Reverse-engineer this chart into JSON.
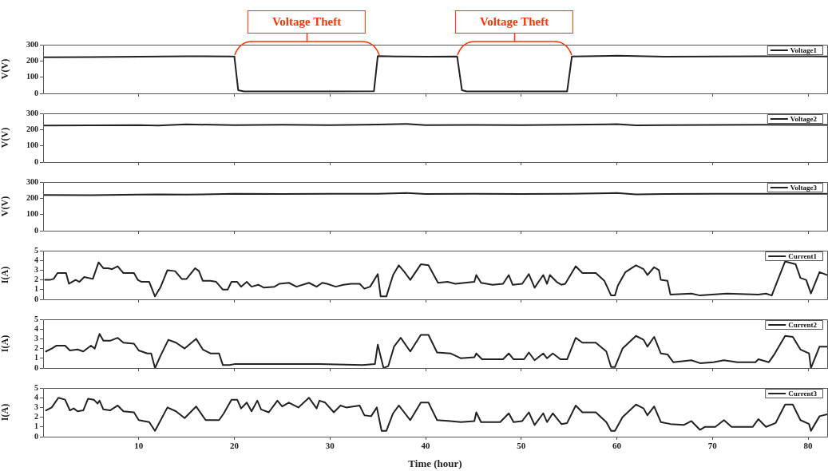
{
  "chart_data": [
    {
      "type": "line",
      "ylabel": "V(V)",
      "xlim": [
        0,
        82
      ],
      "xticks": [
        10,
        20,
        30,
        40,
        50,
        60,
        70,
        80
      ],
      "ylim": [
        0,
        300
      ],
      "yticks": [
        0,
        100,
        200,
        300
      ],
      "tick_labels": "y",
      "legend": "top right",
      "marker": "none",
      "annotations": [
        "Voltage Theft",
        "Voltage Theft"
      ],
      "series": [
        {
          "name": "Voltage1",
          "color": "#222222",
          "x": [
            0,
            5,
            10,
            15,
            20.0,
            20.4,
            21,
            25,
            30,
            34.6,
            35.0,
            37,
            40,
            43.3,
            43.8,
            44.3,
            50,
            54.8,
            55.3,
            58,
            60,
            65,
            70,
            75,
            82
          ],
          "values": [
            222,
            224,
            226,
            229,
            228,
            20,
            12,
            12,
            12,
            14,
            230,
            228,
            226,
            228,
            20,
            12,
            12,
            12,
            228,
            230,
            232,
            226,
            228,
            229,
            228
          ]
        }
      ]
    },
    {
      "type": "line",
      "ylabel": "V(V)",
      "xlim": [
        0,
        82
      ],
      "xticks": [
        10,
        20,
        30,
        40,
        50,
        60,
        70,
        80
      ],
      "ylim": [
        0,
        300
      ],
      "yticks": [
        0,
        100,
        200,
        300
      ],
      "tick_labels": "y",
      "legend": "top right",
      "marker": "none",
      "series": [
        {
          "name": "Voltage2",
          "color": "#222222",
          "x": [
            0,
            5,
            10,
            12,
            15,
            20,
            25,
            30,
            35,
            38,
            40,
            45,
            50,
            55,
            60,
            62,
            65,
            70,
            75,
            82
          ],
          "values": [
            225,
            226,
            228,
            225,
            232,
            228,
            230,
            228,
            231,
            235,
            228,
            229,
            228,
            230,
            233,
            226,
            228,
            229,
            230,
            229
          ]
        }
      ]
    },
    {
      "type": "line",
      "ylabel": "V(V)",
      "xlim": [
        0,
        82
      ],
      "xticks": [
        10,
        20,
        30,
        40,
        50,
        60,
        70,
        80
      ],
      "ylim": [
        0,
        300
      ],
      "yticks": [
        0,
        100,
        200,
        300
      ],
      "tick_labels": "y",
      "legend": "top right",
      "marker": "none",
      "series": [
        {
          "name": "Voltage3",
          "color": "#222222",
          "x": [
            0,
            5,
            10,
            12,
            15,
            20,
            25,
            30,
            35,
            38,
            40,
            45,
            50,
            55,
            60,
            62,
            65,
            70,
            75,
            82
          ],
          "values": [
            220,
            219,
            222,
            224,
            222,
            228,
            226,
            227,
            228,
            232,
            226,
            227,
            226,
            228,
            232,
            224,
            226,
            227,
            228,
            227
          ]
        }
      ]
    },
    {
      "type": "line",
      "ylabel": "I(A)",
      "xlim": [
        0,
        82
      ],
      "xticks": [
        10,
        20,
        30,
        40,
        50,
        60,
        70,
        80
      ],
      "ylim": [
        0,
        5
      ],
      "yticks": [
        0,
        1,
        2,
        3,
        4,
        5
      ],
      "tick_labels": "y",
      "legend": "top right",
      "marker": "none",
      "series": [
        {
          "name": "Current1",
          "color": "#222222",
          "x": [
            0.2,
            0.7,
            1.1,
            1.5,
            2.4,
            2.7,
            3.4,
            3.8,
            4.3,
            5.2,
            5.8,
            6.3,
            6.8,
            7.2,
            7.8,
            8.4,
            9.5,
            9.9,
            10.3,
            11.1,
            11.7,
            12.3,
            13.0,
            13.8,
            14.5,
            15.0,
            15.9,
            16.3,
            16.7,
            17.5,
            18.1,
            18.8,
            19.3,
            19.7,
            20.3,
            20.7,
            21.3,
            21.8,
            22.5,
            23.1,
            24.2,
            24.7,
            25.7,
            26.5,
            27.8,
            28.6,
            29.2,
            29.7,
            30.6,
            31.4,
            32.2,
            33.1,
            33.6,
            34.2,
            35.0,
            35.3,
            35.9,
            36.6,
            37.2,
            37.8,
            38.4,
            39.5,
            40.3,
            41.3,
            42.3,
            43.1,
            45.1,
            45.3,
            45.8,
            47.0,
            48.1,
            48.7,
            49.1,
            50.1,
            50.8,
            51.4,
            52.3,
            52.7,
            53.0,
            53.7,
            54.2,
            54.6,
            55.7,
            56.4,
            57.8,
            58.7,
            59.4,
            59.8,
            60.1,
            60.9,
            62.0,
            62.8,
            63.2,
            63.9,
            64.4,
            64.6,
            65.3,
            65.6,
            67.8,
            68.7,
            71.5,
            74.8,
            75.6,
            76.2,
            76.6,
            77.6,
            78.7,
            79.2,
            79.8,
            80.3,
            81.2,
            82.0
          ],
          "values": [
            2.0,
            2.0,
            2.1,
            2.7,
            2.7,
            1.6,
            2.0,
            1.8,
            2.3,
            2.1,
            3.8,
            3.2,
            3.2,
            3.1,
            3.4,
            2.7,
            2.7,
            2.0,
            1.8,
            1.8,
            0.3,
            1.3,
            3.0,
            2.9,
            2.1,
            2.1,
            3.2,
            2.9,
            1.9,
            1.9,
            1.8,
            1.0,
            1.0,
            1.8,
            1.8,
            1.3,
            1.8,
            1.3,
            1.5,
            1.2,
            1.3,
            1.6,
            1.7,
            1.3,
            1.7,
            1.3,
            1.7,
            1.6,
            1.3,
            1.5,
            1.6,
            1.6,
            1.1,
            1.3,
            2.6,
            0.3,
            0.3,
            2.5,
            3.5,
            2.8,
            2.0,
            3.6,
            3.5,
            1.7,
            1.8,
            1.6,
            1.8,
            2.5,
            1.7,
            1.5,
            1.6,
            2.5,
            1.5,
            1.6,
            2.6,
            1.2,
            2.5,
            1.6,
            2.5,
            1.8,
            1.5,
            1.6,
            3.4,
            2.7,
            2.7,
            1.9,
            0.4,
            0.4,
            1.4,
            2.8,
            3.5,
            3.1,
            2.5,
            3.3,
            3.0,
            2.0,
            1.9,
            0.5,
            0.6,
            0.4,
            0.6,
            0.5,
            0.6,
            0.4,
            1.4,
            3.9,
            3.6,
            2.2,
            2.0,
            0.6,
            2.8,
            2.5
          ]
        }
      ]
    },
    {
      "type": "line",
      "ylabel": "I(A)",
      "xlim": [
        0,
        82
      ],
      "xticks": [
        10,
        20,
        30,
        40,
        50,
        60,
        70,
        80
      ],
      "ylim": [
        0,
        5
      ],
      "yticks": [
        0,
        1,
        2,
        3,
        4,
        5
      ],
      "tick_labels": "y",
      "legend": "top right",
      "marker": "none",
      "series": [
        {
          "name": "Current2",
          "color": "#222222",
          "x": [
            0.3,
            0.9,
            1.4,
            2.3,
            2.8,
            3.6,
            4.2,
            5.0,
            5.4,
            5.9,
            6.3,
            7.0,
            7.8,
            8.4,
            9.5,
            10.0,
            10.9,
            11.3,
            11.7,
            12.3,
            13.1,
            13.9,
            14.8,
            16.0,
            16.7,
            17.5,
            18.4,
            18.8,
            19.5,
            20.0,
            23.3,
            26.1,
            28.9,
            33.4,
            34.7,
            35.0,
            35.6,
            36.1,
            36.7,
            37.4,
            38.4,
            39.5,
            40.3,
            41.2,
            42.6,
            43.7,
            45.1,
            45.3,
            45.9,
            48.1,
            48.7,
            49.2,
            50.3,
            50.8,
            51.4,
            52.3,
            52.7,
            53.3,
            54.1,
            54.8,
            55.7,
            56.4,
            57.8,
            58.9,
            59.4,
            59.8,
            60.6,
            62.0,
            62.8,
            63.2,
            63.9,
            64.6,
            65.3,
            65.9,
            67.8,
            68.7,
            70.1,
            71.2,
            72.6,
            74.5,
            74.8,
            75.9,
            76.4,
            77.6,
            78.4,
            79.2,
            80.1,
            80.3,
            81.2,
            82.0
          ],
          "values": [
            1.7,
            2.0,
            2.3,
            2.3,
            1.8,
            1.9,
            1.7,
            2.3,
            2.0,
            3.5,
            2.8,
            2.8,
            3.1,
            2.6,
            2.5,
            1.8,
            1.5,
            1.5,
            0.0,
            1.3,
            2.9,
            2.6,
            2.0,
            3.0,
            1.9,
            1.5,
            1.5,
            0.3,
            0.3,
            0.4,
            0.4,
            0.4,
            0.4,
            0.3,
            0.4,
            2.4,
            0.0,
            0.2,
            2.2,
            3.1,
            1.7,
            3.4,
            3.4,
            1.6,
            1.5,
            1.0,
            1.1,
            1.5,
            0.9,
            0.9,
            1.5,
            0.9,
            0.9,
            1.6,
            0.8,
            1.5,
            1.0,
            1.5,
            0.9,
            0.9,
            3.1,
            2.6,
            2.6,
            1.7,
            0.1,
            0.1,
            2.0,
            3.3,
            2.9,
            2.2,
            3.2,
            1.5,
            1.4,
            0.6,
            0.8,
            0.5,
            0.6,
            0.8,
            0.6,
            0.6,
            0.9,
            0.6,
            1.3,
            3.3,
            3.2,
            1.9,
            1.5,
            0.0,
            2.2,
            2.2
          ]
        }
      ]
    },
    {
      "type": "line",
      "ylabel": "I(A)",
      "xlabel": "Time (hour)",
      "xlim": [
        0,
        82
      ],
      "xticks": [
        10,
        20,
        30,
        40,
        50,
        60,
        70,
        80
      ],
      "ylim": [
        0,
        5
      ],
      "yticks": [
        0,
        1,
        2,
        3,
        4,
        5
      ],
      "legend": "top right",
      "marker": "none",
      "series": [
        {
          "name": "Current3",
          "color": "#222222",
          "x": [
            0.3,
            0.9,
            1.6,
            2.3,
            2.8,
            3.2,
            3.6,
            4.2,
            4.7,
            5.3,
            5.7,
            5.9,
            6.3,
            7.0,
            7.8,
            8.4,
            9.5,
            10.0,
            11.1,
            11.7,
            13.0,
            13.9,
            14.8,
            16.0,
            17.0,
            18.4,
            18.9,
            19.7,
            20.3,
            20.7,
            21.3,
            21.8,
            22.4,
            22.8,
            23.6,
            24.5,
            25.0,
            25.7,
            26.7,
            27.8,
            28.6,
            28.9,
            29.5,
            30.4,
            31.1,
            31.7,
            33.1,
            33.6,
            34.3,
            34.9,
            35.4,
            35.9,
            36.6,
            37.2,
            38.4,
            39.5,
            40.3,
            41.2,
            42.6,
            43.7,
            45.1,
            45.3,
            45.8,
            47.8,
            48.7,
            49.2,
            50.1,
            50.8,
            51.4,
            52.3,
            52.7,
            53.3,
            54.2,
            54.8,
            55.7,
            56.4,
            57.8,
            58.9,
            59.4,
            59.8,
            60.6,
            62.0,
            62.8,
            63.2,
            63.9,
            64.6,
            65.6,
            67.0,
            67.8,
            68.7,
            69.2,
            70.3,
            71.2,
            72.0,
            74.2,
            74.8,
            75.6,
            76.6,
            77.6,
            78.4,
            79.2,
            80.1,
            80.3,
            81.2,
            82.0
          ],
          "values": [
            2.7,
            3.0,
            4.0,
            3.8,
            2.7,
            2.9,
            2.6,
            2.7,
            3.9,
            3.8,
            3.4,
            3.7,
            2.8,
            2.7,
            3.2,
            2.6,
            2.5,
            1.7,
            1.5,
            0.6,
            3.0,
            2.6,
            1.9,
            3.1,
            1.7,
            1.7,
            2.4,
            3.8,
            3.8,
            2.9,
            3.5,
            2.6,
            3.7,
            2.8,
            2.5,
            3.7,
            3.1,
            3.5,
            3.0,
            4.0,
            2.9,
            3.7,
            3.5,
            2.5,
            3.2,
            3.0,
            3.2,
            2.2,
            2.1,
            3.0,
            0.6,
            0.6,
            2.4,
            3.2,
            1.7,
            3.5,
            3.5,
            1.7,
            1.6,
            1.5,
            1.6,
            2.5,
            1.5,
            1.5,
            2.4,
            1.5,
            1.6,
            2.5,
            1.2,
            2.4,
            1.5,
            2.4,
            1.3,
            1.4,
            3.2,
            2.5,
            2.5,
            1.5,
            0.6,
            0.6,
            2.0,
            3.3,
            2.9,
            2.2,
            3.1,
            1.5,
            1.3,
            1.2,
            1.6,
            0.7,
            1.0,
            1.0,
            1.7,
            1.0,
            1.0,
            1.8,
            1.0,
            1.4,
            3.3,
            3.3,
            1.7,
            1.3,
            0.6,
            2.1,
            2.3
          ]
        }
      ]
    }
  ]
}
